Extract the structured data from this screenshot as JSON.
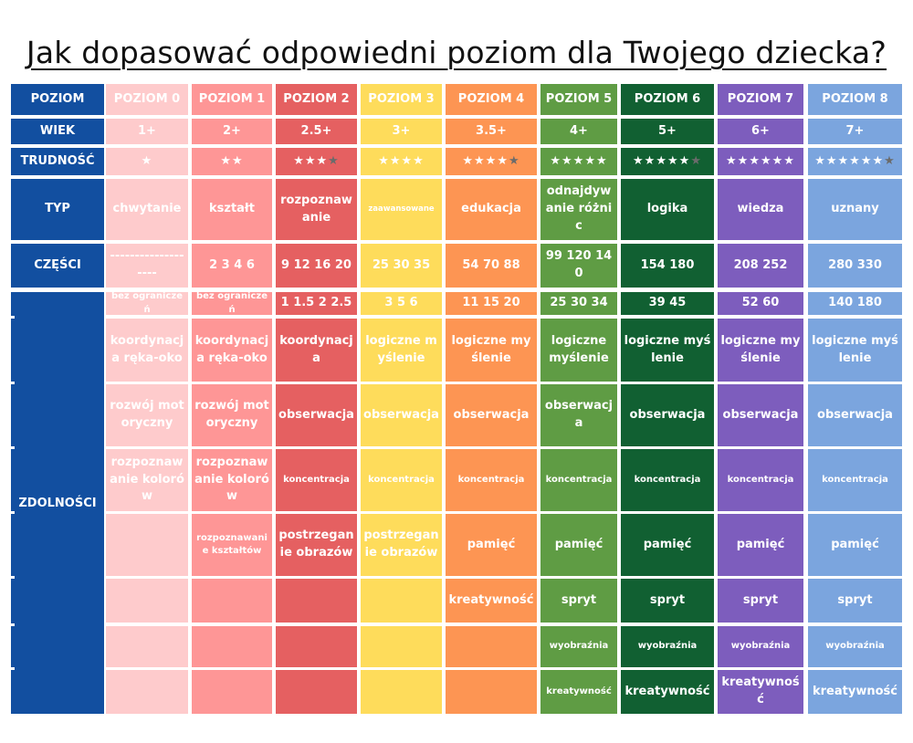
{
  "title": "Jak dopasować odpowiedni poziom dla Twojego dziecka?",
  "colors": {
    "label": "#124fa0",
    "levels": [
      "#fecbcc",
      "#fe9696",
      "#e56061",
      "#fedc5b",
      "#fd9553",
      "#5f9c44",
      "#116032",
      "#7d5dbd",
      "#7ba5de"
    ]
  },
  "row_labels": {
    "poziom": "POZIOM",
    "wiek": "WIEK",
    "trudnosc": "TRUDNOŚĆ",
    "typ": "TYP",
    "czesci": "CZĘŚCI",
    "zdolnosci": "ZDOLNOŚCI"
  },
  "levels": [
    {
      "name": "POZIOM 0",
      "age": "1+",
      "stars_full": "★",
      "stars_half": "",
      "type": "chwytanie",
      "parts": "-------------------",
      "pieces": "bez ograniczeń",
      "skills": [
        "koordynacja ręka-oko",
        "rozwój motoryczny",
        "rozpoznawanie kolorów",
        "",
        "",
        "",
        ""
      ]
    },
    {
      "name": "POZIOM 1",
      "age": "2+",
      "stars_full": "★★",
      "stars_half": "",
      "type": "kształt",
      "parts": "2 3 4  6",
      "pieces": "bez ograniczeń",
      "skills": [
        "koordynacja ręka-oko",
        "rozwój motoryczny",
        "rozpoznawanie kolorów",
        "rozpoznawanie kształtów",
        "",
        "",
        ""
      ]
    },
    {
      "name": "POZIOM 2",
      "age": "2.5+",
      "stars_full": "★★★",
      "stars_half": "★",
      "type": "rozpoznawanie",
      "parts": "9 12 16 20",
      "pieces": "1 1.5 2 2.5",
      "skills": [
        "koordynacja",
        "obserwacja",
        "koncentracja",
        "postrzeganie obrazów",
        "",
        "",
        ""
      ]
    },
    {
      "name": "POZIOM 3",
      "age": "3+",
      "stars_full": "★★★★",
      "stars_half": "",
      "type": "zaawansowane",
      "parts": "25 30 35",
      "pieces": "3 5 6",
      "skills": [
        "logiczne myślenie",
        "obserwacja",
        "koncentracja",
        "postrzeganie obrazów",
        "",
        "",
        ""
      ]
    },
    {
      "name": "POZIOM 4",
      "age": "3.5+",
      "stars_full": "★★★★",
      "stars_half": "★",
      "type": "edukacja",
      "parts": "54 70 88",
      "pieces": "11 15 20",
      "skills": [
        "logiczne myślenie",
        "obserwacja",
        "koncentracja",
        "pamięć",
        "kreatywność",
        "",
        ""
      ]
    },
    {
      "name": "POZIOM 5",
      "age": "4+",
      "stars_full": "★★★★★",
      "stars_half": "",
      "type": "odnajdywanie różnic",
      "parts": "99 120 140",
      "pieces": "25 30 34",
      "skills": [
        "logiczne myślenie",
        "obserwacja",
        "koncentracja",
        "pamięć",
        "spryt",
        "wyobraźnia",
        "kreatywność"
      ]
    },
    {
      "name": "POZIOM 6",
      "age": "5+",
      "stars_full": "★★★★★",
      "stars_half": "★",
      "type": "logika",
      "parts": "154  180",
      "pieces": "39 45",
      "skills": [
        "logiczne myślenie",
        "obserwacja",
        "koncentracja",
        "pamięć",
        "spryt",
        "wyobraźnia",
        "kreatywność"
      ]
    },
    {
      "name": "POZIOM 7",
      "age": "6+",
      "stars_full": "★★★★★★",
      "stars_half": "",
      "type": "wiedza",
      "parts": "208  252",
      "pieces": "52 60",
      "skills": [
        "logiczne myślenie",
        "obserwacja",
        "koncentracja",
        "pamięć",
        "spryt",
        "wyobraźnia",
        "kreatywność"
      ]
    },
    {
      "name": "POZIOM 8",
      "age": "7+",
      "stars_full": "★★★★★★",
      "stars_half": "★",
      "type": "uznany",
      "parts": "280 330",
      "pieces": "140 180",
      "skills": [
        "logiczne myślenie",
        "obserwacja",
        "koncentracja",
        "pamięć",
        "spryt",
        "wyobraźnia",
        "kreatywność"
      ]
    }
  ]
}
